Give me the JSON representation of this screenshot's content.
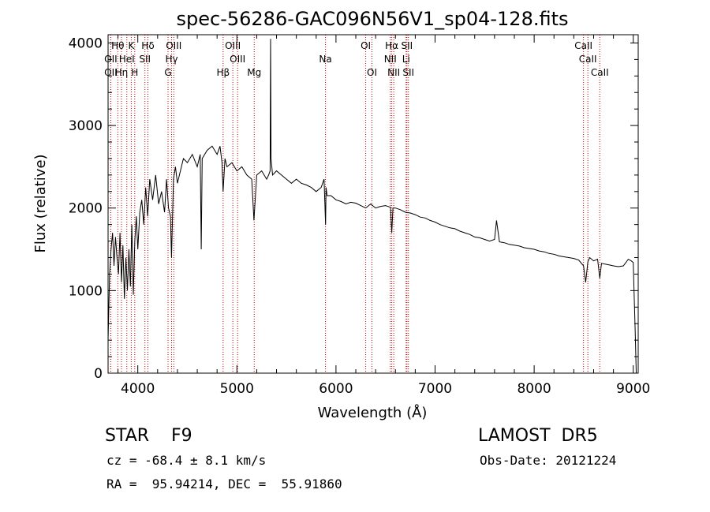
{
  "chart_data": {
    "type": "line",
    "title": "spec-56286-GAC096N56V1_sp04-128.fits",
    "xlabel": "Wavelength (Å)",
    "ylabel": "Flux (relative)",
    "xlim": [
      3700,
      9050
    ],
    "ylim": [
      0,
      4100
    ],
    "xticks": [
      4000,
      5000,
      6000,
      7000,
      8000,
      9000
    ],
    "yticks": [
      0,
      1000,
      2000,
      3000,
      4000
    ],
    "grid": false,
    "series": [
      {
        "x": [
          3700,
          3715,
          3730,
          3745,
          3760,
          3775,
          3790,
          3805,
          3820,
          3835,
          3850,
          3865,
          3880,
          3895,
          3910,
          3925,
          3940,
          3955,
          3970,
          3985,
          4000,
          4020,
          4040,
          4060,
          4080,
          4100,
          4120,
          4150,
          4180,
          4210,
          4240,
          4270,
          4290,
          4310,
          4330,
          4340,
          4360,
          4380,
          4400,
          4430,
          4460,
          4500,
          4550,
          4600,
          4630,
          4640,
          4650,
          4700,
          4750,
          4800,
          4830,
          4850,
          4861,
          4880,
          4900,
          4950,
          5000,
          5050,
          5100,
          5150,
          5172,
          5200,
          5250,
          5300,
          5320,
          5335,
          5340,
          5345,
          5360,
          5400,
          5450,
          5500,
          5550,
          5600,
          5650,
          5700,
          5750,
          5800,
          5850,
          5880,
          5895,
          5900,
          5910,
          5950,
          6000,
          6050,
          6100,
          6150,
          6200,
          6250,
          6300,
          6350,
          6400,
          6450,
          6500,
          6550,
          6563,
          6575,
          6600,
          6650,
          6700,
          6750,
          6800,
          6850,
          6900,
          6950,
          7000,
          7050,
          7100,
          7150,
          7200,
          7250,
          7300,
          7350,
          7400,
          7450,
          7500,
          7550,
          7600,
          7620,
          7650,
          7700,
          7750,
          7800,
          7850,
          7900,
          7950,
          8000,
          8050,
          8100,
          8150,
          8200,
          8250,
          8300,
          8350,
          8400,
          8450,
          8498,
          8520,
          8542,
          8560,
          8600,
          8640,
          8662,
          8680,
          8720,
          8760,
          8800,
          8850,
          8900,
          8950,
          8980,
          9000,
          9010,
          9020,
          9030
        ],
        "y": [
          400,
          1200,
          1500,
          1700,
          1300,
          1650,
          1400,
          1200,
          1700,
          1100,
          1550,
          900,
          1400,
          1000,
          1500,
          1050,
          1800,
          950,
          1600,
          1900,
          1500,
          1950,
          2100,
          1800,
          2250,
          1900,
          2350,
          2100,
          2400,
          2050,
          2200,
          1950,
          2350,
          2000,
          1900,
          1400,
          2350,
          2500,
          2300,
          2450,
          2600,
          2550,
          2650,
          2500,
          2650,
          1500,
          2600,
          2700,
          2750,
          2650,
          2750,
          2550,
          2200,
          2600,
          2500,
          2550,
          2450,
          2500,
          2400,
          2350,
          1850,
          2400,
          2450,
          2350,
          2400,
          2450,
          4050,
          2600,
          2400,
          2450,
          2400,
          2350,
          2300,
          2350,
          2300,
          2280,
          2250,
          2200,
          2250,
          2350,
          1800,
          2250,
          2150,
          2150,
          2100,
          2080,
          2050,
          2070,
          2060,
          2030,
          2000,
          2050,
          2000,
          2020,
          2030,
          2010,
          1700,
          2000,
          2000,
          1980,
          1950,
          1940,
          1920,
          1890,
          1880,
          1850,
          1830,
          1800,
          1780,
          1760,
          1750,
          1720,
          1700,
          1680,
          1650,
          1640,
          1620,
          1600,
          1620,
          1850,
          1590,
          1580,
          1560,
          1550,
          1540,
          1520,
          1510,
          1500,
          1480,
          1470,
          1450,
          1440,
          1420,
          1410,
          1400,
          1390,
          1370,
          1300,
          1100,
          1350,
          1400,
          1360,
          1380,
          1150,
          1330,
          1320,
          1310,
          1300,
          1290,
          1300,
          1380,
          1360,
          1340,
          900,
          500,
          0
        ]
      }
    ],
    "spectral_lines": [
      {
        "name": "Hθ",
        "x": 3798,
        "row": 0
      },
      {
        "name": "OII",
        "x": 3727,
        "row": 1
      },
      {
        "name": "OII",
        "x": 3727,
        "row": 2
      },
      {
        "name": "Hη",
        "x": 3835,
        "row": 2
      },
      {
        "name": "HeI",
        "x": 3889,
        "row": 1
      },
      {
        "name": "K",
        "x": 3934,
        "row": 0
      },
      {
        "name": "H",
        "x": 3969,
        "row": 2
      },
      {
        "name": "SII",
        "x": 4072,
        "row": 1
      },
      {
        "name": "Hδ",
        "x": 4102,
        "row": 0
      },
      {
        "name": "OIII",
        "x": 4363,
        "row": 0
      },
      {
        "name": "Hγ",
        "x": 4341,
        "row": 1
      },
      {
        "name": "G",
        "x": 4305,
        "row": 2
      },
      {
        "name": "Hβ",
        "x": 4861,
        "row": 2
      },
      {
        "name": "OIII",
        "x": 4959,
        "row": 0
      },
      {
        "name": "OIII",
        "x": 5007,
        "row": 1
      },
      {
        "name": "Mg",
        "x": 5175,
        "row": 2
      },
      {
        "name": "Na",
        "x": 5894,
        "row": 1
      },
      {
        "name": "OI",
        "x": 6300,
        "row": 0
      },
      {
        "name": "OI",
        "x": 6363,
        "row": 2
      },
      {
        "name": "Hα",
        "x": 6563,
        "row": 0
      },
      {
        "name": "NII",
        "x": 6548,
        "row": 1
      },
      {
        "name": "NII",
        "x": 6583,
        "row": 2
      },
      {
        "name": "SII",
        "x": 6716,
        "row": 0
      },
      {
        "name": "Li",
        "x": 6708,
        "row": 1
      },
      {
        "name": "SII",
        "x": 6731,
        "row": 2
      },
      {
        "name": "CaII",
        "x": 8498,
        "row": 0
      },
      {
        "name": "CaII",
        "x": 8542,
        "row": 1
      },
      {
        "name": "CaII",
        "x": 8662,
        "row": 2
      }
    ]
  },
  "info": {
    "classification": "STAR    F9",
    "survey": "LAMOST  DR5",
    "redshift": "cz = -68.4 ± 8.1 km/s",
    "obs_date": "Obs-Date: 20121224",
    "coords": "RA =  95.94214, DEC =  55.91860"
  },
  "colors": {
    "spectrum": "#000000",
    "line_marker": "#cc0000",
    "axes": "#000000"
  }
}
